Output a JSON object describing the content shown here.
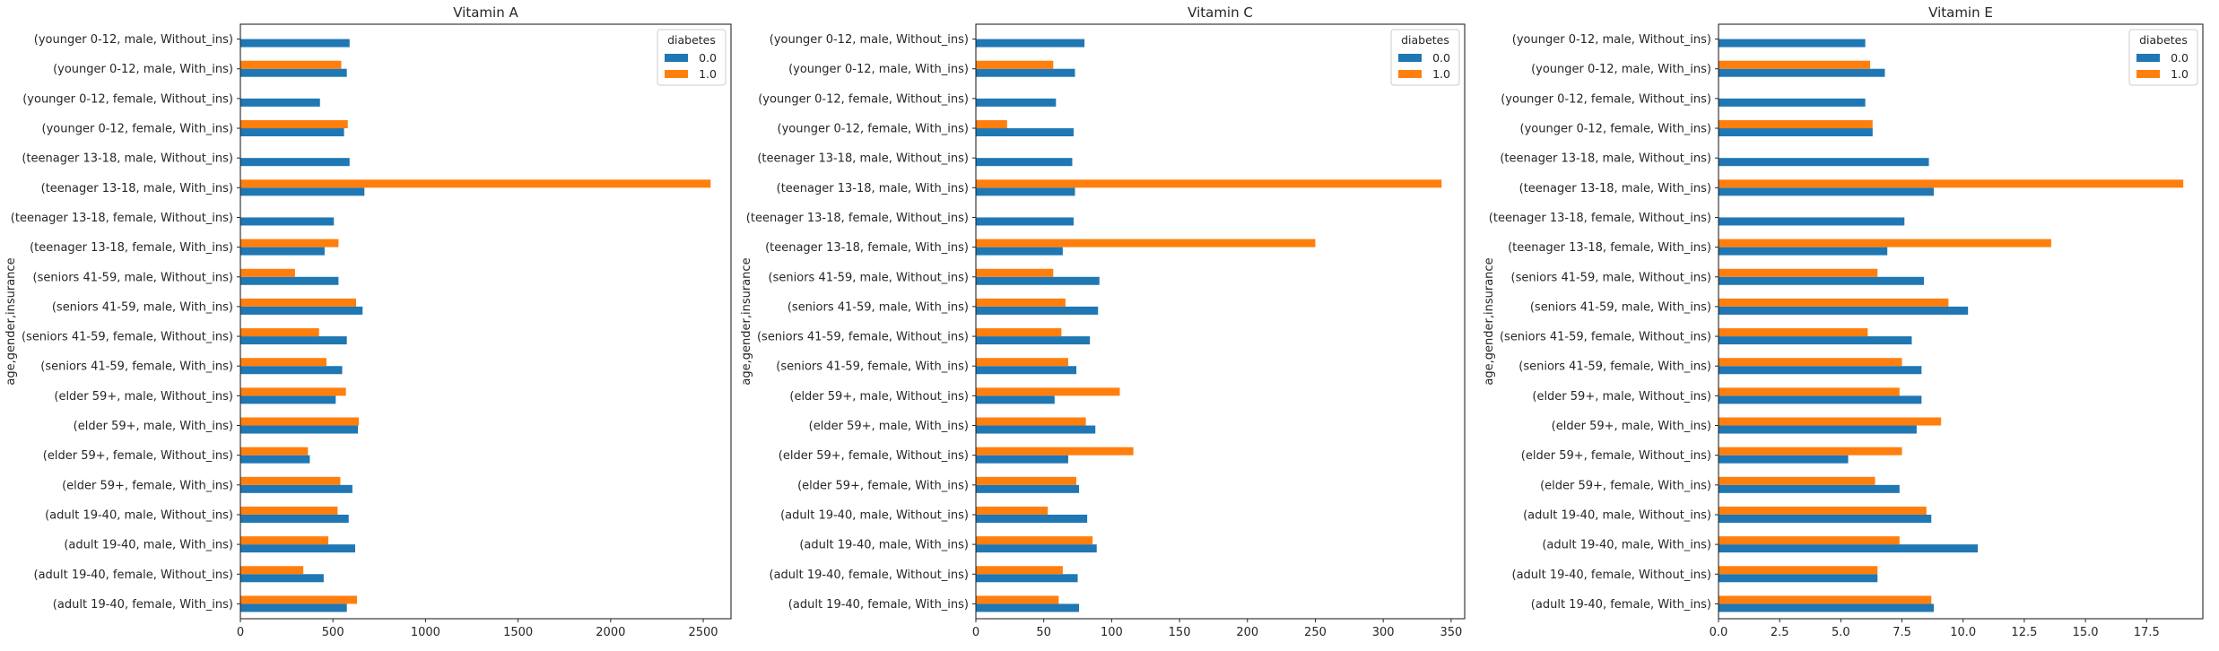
{
  "chart_data": [
    {
      "type": "bar",
      "orientation": "horizontal",
      "title": "Vitamin A",
      "ylabel": "age,gender,insurance",
      "xlabel": "",
      "xlim": [
        0,
        2650
      ],
      "xticks": [
        0,
        500,
        1000,
        1500,
        2000,
        2500
      ],
      "xtick_labels": [
        "0",
        "500",
        "1000",
        "1500",
        "2000",
        "2500"
      ],
      "grid": false,
      "legend_position": "top-right",
      "legend_title": "diabetes",
      "categories": [
        "(younger 0-12, male, Without_ins)",
        "(younger 0-12, male, With_ins)",
        "(younger 0-12, female, Without_ins)",
        "(younger 0-12, female, With_ins)",
        "(teenager 13-18, male, Without_ins)",
        "(teenager 13-18, male, With_ins)",
        "(teenager 13-18, female, Without_ins)",
        "(teenager 13-18, female, With_ins)",
        "(seniors 41-59, male, Without_ins)",
        "(seniors 41-59, male, With_ins)",
        "(seniors 41-59, female, Without_ins)",
        "(seniors 41-59, female, With_ins)",
        "(elder 59+, male, Without_ins)",
        "(elder 59+, male, With_ins)",
        "(elder 59+, female, Without_ins)",
        "(elder 59+, female, With_ins)",
        "(adult 19-40, male, Without_ins)",
        "(adult 19-40, male, With_ins)",
        "(adult 19-40, female, Without_ins)",
        "(adult 19-40, female, With_ins)"
      ],
      "series": [
        {
          "name": "0.0",
          "color": "#1f77b4",
          "values": [
            590,
            575,
            430,
            560,
            590,
            670,
            505,
            455,
            530,
            660,
            575,
            550,
            515,
            635,
            375,
            605,
            585,
            620,
            450,
            575
          ]
        },
        {
          "name": "1.0",
          "color": "#ff7f0e",
          "values": [
            null,
            545,
            null,
            580,
            null,
            2540,
            null,
            530,
            295,
            625,
            425,
            465,
            570,
            640,
            365,
            540,
            525,
            475,
            340,
            630
          ]
        }
      ]
    },
    {
      "type": "bar",
      "orientation": "horizontal",
      "title": "Vitamin C",
      "ylabel": "age,gender,insurance",
      "xlabel": "",
      "xlim": [
        0,
        360
      ],
      "xticks": [
        0,
        50,
        100,
        150,
        200,
        250,
        300,
        350
      ],
      "xtick_labels": [
        "0",
        "50",
        "100",
        "150",
        "200",
        "250",
        "300",
        "350"
      ],
      "grid": false,
      "legend_position": "top-right",
      "legend_title": "diabetes",
      "categories": [
        "(younger 0-12, male, Without_ins)",
        "(younger 0-12, male, With_ins)",
        "(younger 0-12, female, Without_ins)",
        "(younger 0-12, female, With_ins)",
        "(teenager 13-18, male, Without_ins)",
        "(teenager 13-18, male, With_ins)",
        "(teenager 13-18, female, Without_ins)",
        "(teenager 13-18, female, With_ins)",
        "(seniors 41-59, male, Without_ins)",
        "(seniors 41-59, male, With_ins)",
        "(seniors 41-59, female, Without_ins)",
        "(seniors 41-59, female, With_ins)",
        "(elder 59+, male, Without_ins)",
        "(elder 59+, male, With_ins)",
        "(elder 59+, female, Without_ins)",
        "(elder 59+, female, With_ins)",
        "(adult 19-40, male, Without_ins)",
        "(adult 19-40, male, With_ins)",
        "(adult 19-40, female, Without_ins)",
        "(adult 19-40, female, With_ins)"
      ],
      "series": [
        {
          "name": "0.0",
          "color": "#1f77b4",
          "values": [
            80,
            73,
            59,
            72,
            71,
            73,
            72,
            64,
            91,
            90,
            84,
            74,
            58,
            88,
            68,
            76,
            82,
            89,
            75,
            76
          ]
        },
        {
          "name": "1.0",
          "color": "#ff7f0e",
          "values": [
            null,
            57,
            null,
            23,
            null,
            343,
            null,
            250,
            57,
            66,
            63,
            68,
            106,
            81,
            116,
            74,
            53,
            86,
            64,
            61
          ]
        }
      ]
    },
    {
      "type": "bar",
      "orientation": "horizontal",
      "title": "Vitamin E",
      "ylabel": "age,gender,insurance",
      "xlabel": "",
      "xlim": [
        0,
        19.8
      ],
      "xticks": [
        0,
        2.5,
        5,
        7.5,
        10,
        12.5,
        15,
        17.5
      ],
      "xtick_labels": [
        "0.0",
        "2.5",
        "5.0",
        "7.5",
        "10.0",
        "12.5",
        "15.0",
        "17.5"
      ],
      "grid": false,
      "legend_position": "top-right",
      "legend_title": "diabetes",
      "categories": [
        "(younger 0-12, male, Without_ins)",
        "(younger 0-12, male, With_ins)",
        "(younger 0-12, female, Without_ins)",
        "(younger 0-12, female, With_ins)",
        "(teenager 13-18, male, Without_ins)",
        "(teenager 13-18, male, With_ins)",
        "(teenager 13-18, female, Without_ins)",
        "(teenager 13-18, female, With_ins)",
        "(seniors 41-59, male, Without_ins)",
        "(seniors 41-59, male, With_ins)",
        "(seniors 41-59, female, Without_ins)",
        "(seniors 41-59, female, With_ins)",
        "(elder 59+, male, Without_ins)",
        "(elder 59+, male, With_ins)",
        "(elder 59+, female, Without_ins)",
        "(elder 59+, female, With_ins)",
        "(adult 19-40, male, Without_ins)",
        "(adult 19-40, male, With_ins)",
        "(adult 19-40, female, Without_ins)",
        "(adult 19-40, female, With_ins)"
      ],
      "series": [
        {
          "name": "0.0",
          "color": "#1f77b4",
          "values": [
            6.0,
            6.8,
            6.0,
            6.3,
            8.6,
            8.8,
            7.6,
            6.9,
            8.4,
            10.2,
            7.9,
            8.3,
            8.3,
            8.1,
            5.3,
            7.4,
            8.7,
            10.6,
            6.5,
            8.8
          ]
        },
        {
          "name": "1.0",
          "color": "#ff7f0e",
          "values": [
            null,
            6.2,
            null,
            6.3,
            null,
            19.0,
            null,
            13.6,
            6.5,
            9.4,
            6.1,
            7.5,
            7.4,
            9.1,
            7.5,
            6.4,
            8.5,
            7.4,
            6.5,
            8.7
          ]
        }
      ]
    }
  ]
}
